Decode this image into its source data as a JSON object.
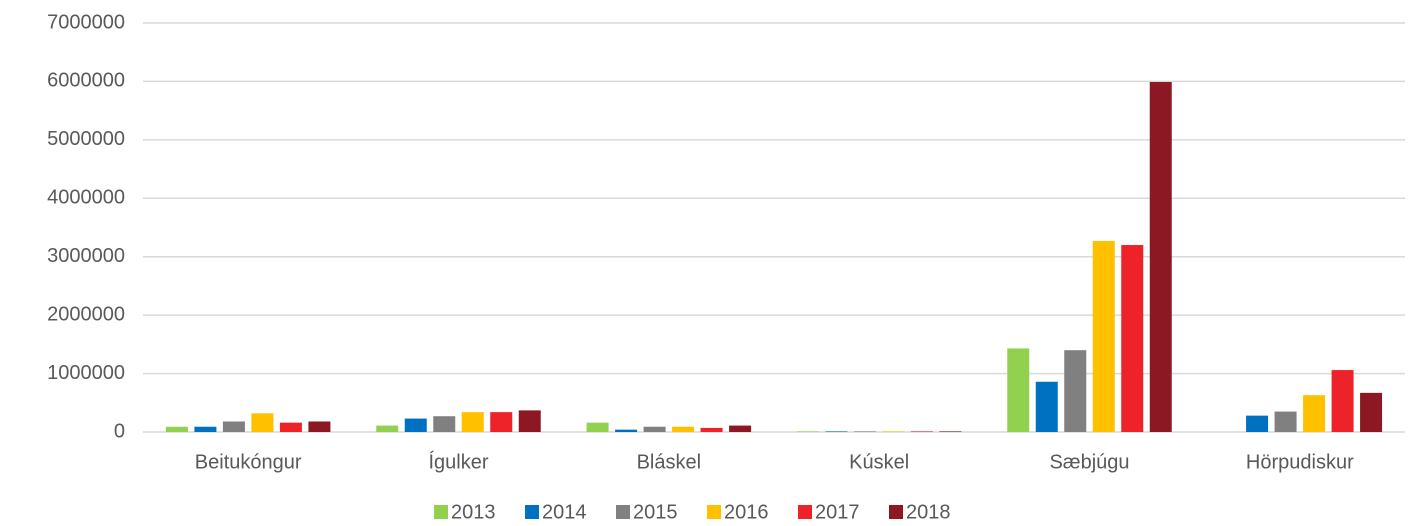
{
  "chart_data": {
    "type": "bar",
    "categories": [
      "Beitukóngur",
      "Ígulker",
      "Bláskel",
      "Kúskel",
      "Sæbjúgu",
      "Hörpudiskur"
    ],
    "series": [
      {
        "name": "2013",
        "color": "#92d050",
        "values": [
          90000,
          110000,
          160000,
          10000,
          1430000,
          0
        ]
      },
      {
        "name": "2014",
        "color": "#0070c0",
        "values": [
          90000,
          230000,
          40000,
          10000,
          860000,
          280000
        ]
      },
      {
        "name": "2015",
        "color": "#808080",
        "values": [
          180000,
          270000,
          90000,
          10000,
          1400000,
          350000
        ]
      },
      {
        "name": "2016",
        "color": "#ffc000",
        "values": [
          320000,
          340000,
          90000,
          10000,
          3270000,
          630000
        ]
      },
      {
        "name": "2017",
        "color": "#ee2229",
        "values": [
          160000,
          340000,
          70000,
          10000,
          3200000,
          1060000
        ]
      },
      {
        "name": "2018",
        "color": "#8b1822",
        "values": [
          180000,
          370000,
          110000,
          10000,
          5990000,
          670000
        ]
      }
    ],
    "ylim": [
      0,
      7000000
    ],
    "yticks": [
      0,
      1000000,
      2000000,
      3000000,
      4000000,
      5000000,
      6000000,
      7000000
    ],
    "grid": true,
    "legend": "bottom"
  }
}
